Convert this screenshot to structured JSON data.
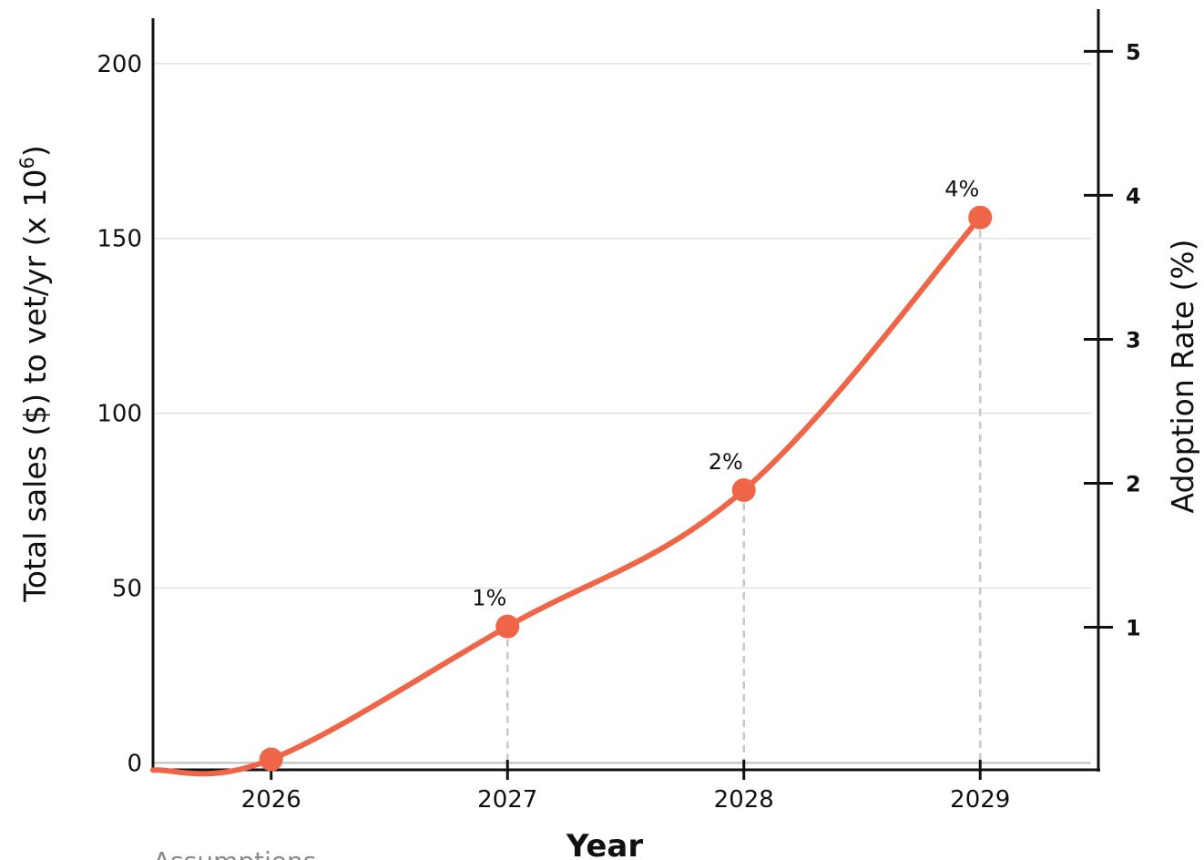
{
  "chart_data": {
    "type": "line",
    "x": [
      2026,
      2027,
      2028,
      2029
    ],
    "xlabel": "Year",
    "xlim": [
      2025.5,
      2029.5
    ],
    "ylabel_left": "Total sales ($) to vet/yr (x 10",
    "ylabel_left_superscript": "6",
    "ylabel_left_suffix": ")",
    "ylabel_right": "Adoption Rate (%)",
    "ylim_left": [
      -2,
      213
    ],
    "ylim_right": [
      0.01,
      5.23
    ],
    "yticks_left": [
      0,
      50,
      100,
      150,
      200
    ],
    "yticks_right": [
      1,
      2,
      3,
      4,
      5
    ],
    "grid": true,
    "series": [
      {
        "values": [
          1,
          39,
          78,
          156
        ],
        "adoption_rate_percent": [
          0,
          1,
          2,
          4
        ],
        "point_labels": [
          "",
          "1%",
          "2%",
          "4%"
        ],
        "color": "#ef6547"
      }
    ],
    "tick_labels_x": [
      "2026",
      "2027",
      "2028",
      "2029"
    ],
    "footnote": "Assumptions"
  }
}
